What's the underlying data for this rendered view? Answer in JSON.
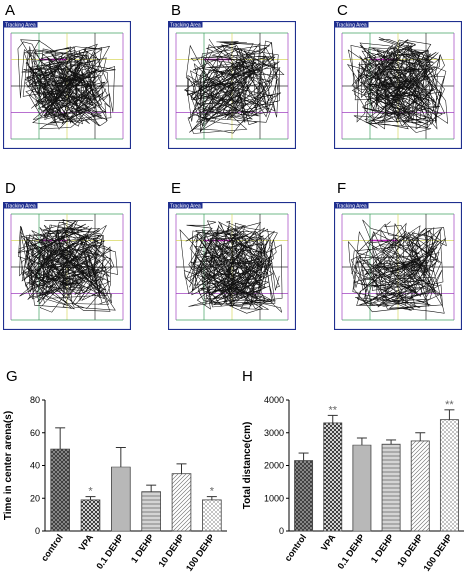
{
  "panels": [
    {
      "letter": "A",
      "tag": "Tracking Area",
      "path_density": 0.85,
      "center_visits": "high"
    },
    {
      "letter": "B",
      "tag": "Tracking Area",
      "path_density": 0.55,
      "center_visits": "low"
    },
    {
      "letter": "C",
      "tag": "Tracking Area",
      "path_density": 0.8,
      "center_visits": "medium"
    },
    {
      "letter": "D",
      "tag": "Tracking Area",
      "path_density": 0.85,
      "center_visits": "medium"
    },
    {
      "letter": "E",
      "tag": "Tracking Area",
      "path_density": 0.8,
      "center_visits": "medium"
    },
    {
      "letter": "F",
      "tag": "Tracking Area",
      "path_density": 0.45,
      "center_visits": "low"
    }
  ],
  "chart_data": [
    {
      "panel_letter": "G",
      "type": "bar",
      "title": "",
      "xlabel": "",
      "ylabel": "Time in center arena(s)",
      "ylim": [
        0,
        80
      ],
      "yticks": [
        0,
        20,
        40,
        60,
        80
      ],
      "grid": false,
      "categories": [
        "control",
        "VPA",
        "0.1 DEHP",
        "1 DEHP",
        "10 DEHP",
        "100 DEHP"
      ],
      "values": [
        50,
        19,
        39,
        24,
        35,
        19
      ],
      "errors": [
        13,
        2,
        12,
        4,
        6,
        2
      ],
      "significance": [
        "",
        "*",
        "",
        "",
        "",
        "*"
      ],
      "patterns": [
        "crosshatch-dense",
        "crosshatch",
        "horizontal",
        "horizontal-fine",
        "diagonal",
        "crosshatch-light"
      ]
    },
    {
      "panel_letter": "H",
      "type": "bar",
      "title": "",
      "xlabel": "",
      "ylabel": "Total distance(cm)",
      "ylim": [
        0,
        4000
      ],
      "yticks": [
        0,
        1000,
        2000,
        3000,
        4000
      ],
      "grid": false,
      "categories": [
        "control",
        "VPA",
        "0.1 DEHP",
        "1 DEHP",
        "10 DEHP",
        "100 DEHP"
      ],
      "values": [
        2150,
        3300,
        2620,
        2650,
        2750,
        3400
      ],
      "errors": [
        230,
        230,
        220,
        130,
        250,
        300
      ],
      "significance": [
        "",
        "**",
        "",
        "",
        "",
        "**"
      ],
      "patterns": [
        "crosshatch-dense",
        "crosshatch",
        "horizontal",
        "horizontal-fine",
        "diagonal",
        "crosshatch-light"
      ]
    }
  ],
  "colors": {
    "frame_blue": "#1f2f8f",
    "tag_bg": "#1f2f8f",
    "tag_text": "#ffffff",
    "path": "#111111",
    "grid_purple": "#a040c0",
    "grid_yellow": "#d8d860",
    "grid_green": "#40a060",
    "grid_magenta": "#c020c0",
    "grid_dark": "#303030",
    "bar_stroke": "#444444",
    "star": "#666666"
  }
}
